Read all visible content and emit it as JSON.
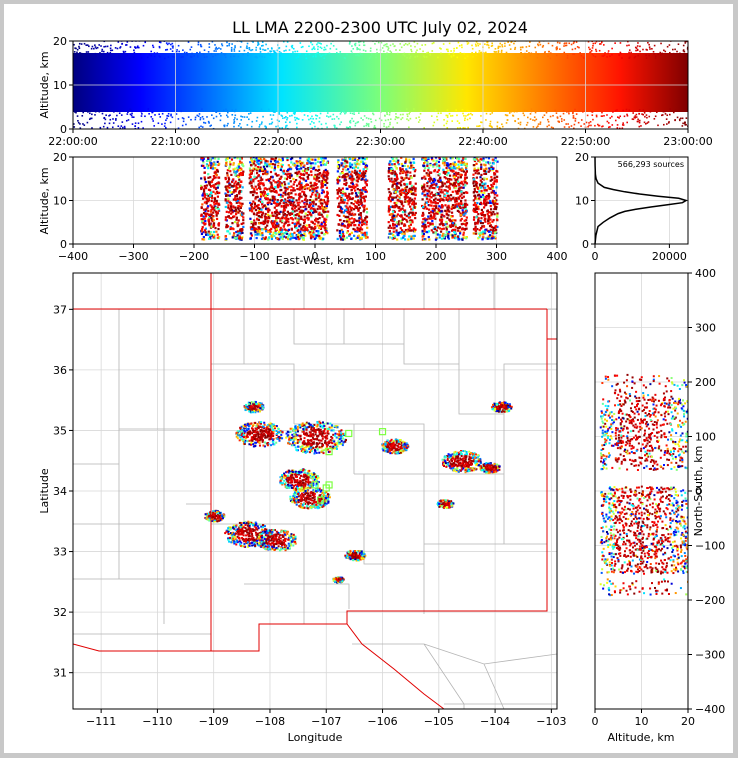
{
  "chart_data": [
    {
      "type": "scatter",
      "panel": "altitude-time",
      "title": "LL LMA 2200-2300 UTC July 02, 2024",
      "ylabel": "Altitude, km",
      "ylim": [
        0,
        20
      ],
      "y_ticks": [
        "0",
        "10",
        "20"
      ],
      "x_ticks": [
        "22:00:00",
        "22:10:00",
        "22:20:00",
        "22:30:00",
        "22:40:00",
        "22:50:00",
        "23:00:00"
      ],
      "x_range_min": [
        0,
        60
      ],
      "color_by": "time",
      "grid": true,
      "source_band_km": [
        1,
        18
      ]
    },
    {
      "type": "scatter",
      "panel": "altitude-east-west",
      "xlabel": "East-West, km",
      "ylabel": "Altitude, km",
      "xlim": [
        -400,
        400
      ],
      "ylim": [
        0,
        20
      ],
      "x_ticks": [
        "−400",
        "−300",
        "−200",
        "−100",
        "0",
        "100",
        "200",
        "300",
        "400"
      ],
      "y_ticks": [
        "0",
        "10",
        "20"
      ],
      "clusters_x_km": [
        [
          -190,
          -160
        ],
        [
          -150,
          -120
        ],
        [
          -110,
          20
        ],
        [
          35,
          85
        ],
        [
          120,
          165
        ],
        [
          175,
          250
        ],
        [
          260,
          300
        ]
      ],
      "grid": true
    },
    {
      "type": "line",
      "panel": "altitude-histogram",
      "annotation": "566,293 sources",
      "x_ticks": [
        "0",
        "20000"
      ],
      "y_ticks": [
        "0",
        "10",
        "20"
      ],
      "xlim": [
        0,
        25000
      ],
      "ylim": [
        0,
        20
      ],
      "curve": {
        "altitude_km": [
          0,
          2,
          4,
          5,
          6,
          7,
          7.5,
          8,
          8.5,
          9,
          9.5,
          10,
          10.5,
          11,
          11.5,
          12,
          12.5,
          13,
          14,
          15,
          16,
          18,
          20
        ],
        "count": [
          0,
          250,
          800,
          2200,
          4000,
          6200,
          8000,
          11000,
          15000,
          19500,
          23500,
          24500,
          22500,
          17000,
          12000,
          8000,
          5000,
          2500,
          800,
          300,
          120,
          40,
          10
        ]
      }
    },
    {
      "type": "scatter",
      "panel": "plan-view",
      "xlabel": "Longitude",
      "ylabel": "Latitude",
      "xlim": [
        -111.5,
        -102.9
      ],
      "ylim": [
        30.4,
        37.6
      ],
      "x_ticks": [
        "−111",
        "−110",
        "−109",
        "−108",
        "−107",
        "−106",
        "−105",
        "−104",
        "−103"
      ],
      "y_ticks": [
        "31",
        "32",
        "33",
        "34",
        "35",
        "36",
        "37"
      ],
      "storms": [
        {
          "lon": -107.2,
          "lat": 34.9,
          "size": 0.45
        },
        {
          "lon": -108.2,
          "lat": 34.95,
          "size": 0.35
        },
        {
          "lon": -107.5,
          "lat": 34.2,
          "size": 0.3
        },
        {
          "lon": -107.3,
          "lat": 33.9,
          "size": 0.3
        },
        {
          "lon": -108.4,
          "lat": 33.3,
          "size": 0.35
        },
        {
          "lon": -107.9,
          "lat": 33.2,
          "size": 0.3
        },
        {
          "lon": -108.3,
          "lat": 35.4,
          "size": 0.15
        },
        {
          "lon": -105.8,
          "lat": 34.75,
          "size": 0.2
        },
        {
          "lon": -104.6,
          "lat": 34.5,
          "size": 0.3
        },
        {
          "lon": -104.1,
          "lat": 34.4,
          "size": 0.15
        },
        {
          "lon": -103.9,
          "lat": 35.4,
          "size": 0.15
        },
        {
          "lon": -106.5,
          "lat": 32.95,
          "size": 0.15
        },
        {
          "lon": -109.0,
          "lat": 33.6,
          "size": 0.15
        },
        {
          "lon": -104.9,
          "lat": 33.8,
          "size": 0.12
        },
        {
          "lon": -106.8,
          "lat": 32.55,
          "size": 0.08
        }
      ],
      "stations": [
        [
          -106.6,
          34.95
        ],
        [
          -106.0,
          34.98
        ],
        [
          -106.95,
          34.65
        ],
        [
          -107.0,
          34.05
        ],
        [
          -107.1,
          33.85
        ],
        [
          -106.95,
          34.1
        ],
        [
          -107.2,
          34.1
        ]
      ],
      "grid": true
    },
    {
      "type": "scatter",
      "panel": "north-south-altitude",
      "xlabel": "Altitude, km",
      "ylabel": "North-South, km",
      "xlim": [
        0,
        20
      ],
      "ylim": [
        -400,
        400
      ],
      "x_ticks": [
        "0",
        "10",
        "20"
      ],
      "y_ticks": [
        "−400",
        "−300",
        "−200",
        "−100",
        "0",
        "100",
        "200",
        "300",
        "400"
      ],
      "grid": true
    }
  ]
}
